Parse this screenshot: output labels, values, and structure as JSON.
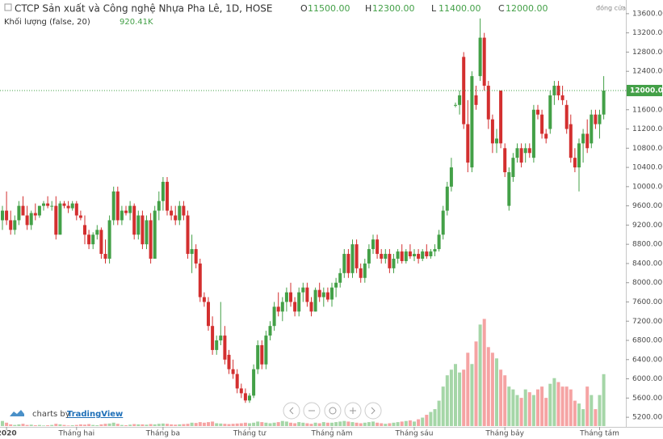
{
  "chart_data": {
    "type": "candlestick",
    "title": "CTCP Sản xuất và Công nghệ Nhựa Pha Lê, 1D, HOSE",
    "ohlc_legend": [
      {
        "key": "O",
        "value": "11500.00"
      },
      {
        "key": "H",
        "value": "12300.00"
      },
      {
        "key": "L",
        "value": "11400.00"
      },
      {
        "key": "C",
        "value": "12000.00"
      }
    ],
    "close_label": "đóng cửa",
    "volume_legend": {
      "name": "Khối lượng (false, 20)",
      "value": "920.41K"
    },
    "branding": {
      "prefix": "charts by",
      "name": "TradingView"
    },
    "up_color": "#43a047",
    "down_color": "#d32f2f",
    "volume_up_color": "#a5d6a7",
    "volume_down_color": "#f5a3a3",
    "ylim": [
      5000,
      13800
    ],
    "vlim": [
      0,
      2150000
    ],
    "yticks": [
      {
        "value": 5200,
        "label": "5200.00"
      },
      {
        "value": 5600,
        "label": "5600.00"
      },
      {
        "value": 6000,
        "label": "6000.00"
      },
      {
        "value": 6400,
        "label": "6400.00"
      },
      {
        "value": 6800,
        "label": "6800.00"
      },
      {
        "value": 7200,
        "label": "7200.00"
      },
      {
        "value": 7600,
        "label": "7600.00"
      },
      {
        "value": 8000,
        "label": "8000.00"
      },
      {
        "value": 8400,
        "label": "8400.00"
      },
      {
        "value": 8800,
        "label": "8800.00"
      },
      {
        "value": 9200,
        "label": "9200.00"
      },
      {
        "value": 9600,
        "label": "9600.00"
      },
      {
        "value": 10000,
        "label": "10000.00"
      },
      {
        "value": 10400,
        "label": "10400.00"
      },
      {
        "value": 10800,
        "label": "10800.00"
      },
      {
        "value": 11200,
        "label": "11200.00"
      },
      {
        "value": 11600,
        "label": "11600.00"
      },
      {
        "value": 12000,
        "label": "12000.00"
      },
      {
        "value": 12400,
        "label": "12400.00"
      },
      {
        "value": 12800,
        "label": "12800.00"
      },
      {
        "value": 13200,
        "label": "13200.00"
      },
      {
        "value": 13600,
        "label": "13600.00"
      }
    ],
    "last_price": {
      "value": 12000,
      "label": "12000.00"
    },
    "xticks": [
      {
        "value": 1,
        "label": "2020"
      },
      {
        "value": 18,
        "label": "Tháng hai"
      },
      {
        "value": 39,
        "label": "Tháng ba"
      },
      {
        "value": 60,
        "label": "Tháng tư"
      },
      {
        "value": 80,
        "label": "Tháng năm"
      },
      {
        "value": 100,
        "label": "Tháng sáu"
      },
      {
        "value": 122,
        "label": "Tháng bảy"
      },
      {
        "value": 145,
        "label": "Tháng tám"
      }
    ],
    "candles": [
      [
        9300,
        9600,
        9100,
        9500
      ],
      [
        9500,
        9900,
        9200,
        9300
      ],
      [
        9300,
        9500,
        9000,
        9100
      ],
      [
        9100,
        9400,
        9000,
        9300
      ],
      [
        9300,
        9700,
        9200,
        9600
      ],
      [
        9600,
        9800,
        9400,
        9400
      ],
      [
        9400,
        9600,
        9100,
        9200
      ],
      [
        9200,
        9500,
        9100,
        9450
      ],
      [
        9450,
        9650,
        9300,
        9400
      ],
      [
        9400,
        9600,
        9350,
        9600
      ],
      [
        9600,
        9700,
        9500,
        9650
      ],
      [
        9650,
        9800,
        9550,
        9600
      ],
      [
        9600,
        9700,
        9500,
        9600
      ],
      [
        9600,
        9800,
        8900,
        9000
      ],
      [
        9000,
        9700,
        9000,
        9650
      ],
      [
        9650,
        9700,
        9550,
        9600
      ],
      [
        9600,
        9700,
        9450,
        9550
      ],
      [
        9550,
        9700,
        9500,
        9650
      ],
      [
        9650,
        9700,
        9300,
        9400
      ],
      [
        9400,
        9500,
        9300,
        9350
      ],
      [
        9200,
        9400,
        8800,
        9000
      ],
      [
        9000,
        9100,
        8700,
        8800
      ],
      [
        8800,
        9050,
        8700,
        9000
      ],
      [
        9000,
        9200,
        8900,
        9100
      ],
      [
        9100,
        9150,
        8500,
        8600
      ],
      [
        8600,
        8900,
        8400,
        8500
      ],
      [
        8500,
        9400,
        8400,
        9300
      ],
      [
        9300,
        10000,
        9200,
        9900
      ],
      [
        9900,
        10000,
        9200,
        9300
      ],
      [
        9300,
        9600,
        9200,
        9500
      ],
      [
        9500,
        9600,
        9400,
        9450
      ],
      [
        9450,
        9700,
        9300,
        9600
      ],
      [
        9600,
        9650,
        8900,
        9000
      ],
      [
        9000,
        9500,
        8900,
        9400
      ],
      [
        9400,
        9500,
        8700,
        8800
      ],
      [
        8800,
        9400,
        8700,
        9300
      ],
      [
        9300,
        9450,
        8400,
        8500
      ],
      [
        8500,
        9600,
        8500,
        9500
      ],
      [
        9500,
        9900,
        9300,
        9700
      ],
      [
        9700,
        10200,
        9500,
        10100
      ],
      [
        10100,
        10200,
        9400,
        9500
      ],
      [
        9500,
        9600,
        9300,
        9400
      ],
      [
        9400,
        9600,
        9200,
        9300
      ],
      [
        9300,
        9700,
        9200,
        9600
      ],
      [
        9600,
        9700,
        9300,
        9400
      ],
      [
        9400,
        9500,
        8500,
        8600
      ],
      [
        8600,
        9000,
        8200,
        8700
      ],
      [
        8700,
        8800,
        8300,
        8400
      ],
      [
        8400,
        8500,
        7600,
        7700
      ],
      [
        7700,
        7800,
        7500,
        7600
      ],
      [
        7600,
        7700,
        7000,
        7100
      ],
      [
        7100,
        7300,
        6500,
        6600
      ],
      [
        6600,
        6900,
        6500,
        6800
      ],
      [
        6800,
        7600,
        6700,
        6900
      ],
      [
        6900,
        7100,
        6300,
        6400
      ],
      [
        6500,
        6600,
        6100,
        6200
      ],
      [
        6200,
        6400,
        6000,
        6100
      ],
      [
        6100,
        6200,
        5700,
        5800
      ],
      [
        5800,
        5900,
        5600,
        5700
      ],
      [
        5700,
        5800,
        5500,
        5550
      ],
      [
        5550,
        5700,
        5500,
        5650
      ],
      [
        5650,
        6300,
        5600,
        6200
      ],
      [
        6200,
        6800,
        6100,
        6700
      ],
      [
        6700,
        6800,
        6200,
        6300
      ],
      [
        6300,
        7000,
        6200,
        6900
      ],
      [
        6900,
        7200,
        6800,
        7100
      ],
      [
        7100,
        7600,
        7000,
        7500
      ],
      [
        7500,
        7800,
        7300,
        7400
      ],
      [
        7400,
        7700,
        7200,
        7600
      ],
      [
        7600,
        7900,
        7400,
        7800
      ],
      [
        7800,
        8000,
        7500,
        7600
      ],
      [
        7600,
        7700,
        7300,
        7400
      ],
      [
        7400,
        7900,
        7300,
        7800
      ],
      [
        7800,
        8000,
        7600,
        7900
      ],
      [
        7900,
        8000,
        7500,
        7600
      ],
      [
        7600,
        7700,
        7300,
        7400
      ],
      [
        7400,
        7900,
        7400,
        7850
      ],
      [
        7850,
        8000,
        7600,
        7700
      ],
      [
        7700,
        7900,
        7500,
        7800
      ],
      [
        7800,
        7900,
        7600,
        7650
      ],
      [
        7650,
        8000,
        7500,
        7900
      ],
      [
        7900,
        8100,
        7700,
        8000
      ],
      [
        8000,
        8300,
        7900,
        8200
      ],
      [
        8200,
        8700,
        8100,
        8600
      ],
      [
        8600,
        8700,
        8100,
        8200
      ],
      [
        8200,
        8900,
        8100,
        8800
      ],
      [
        8800,
        8900,
        8200,
        8300
      ],
      [
        8300,
        8400,
        8000,
        8100
      ],
      [
        8100,
        8500,
        8000,
        8400
      ],
      [
        8400,
        8800,
        8300,
        8700
      ],
      [
        8700,
        9000,
        8600,
        8900
      ],
      [
        8900,
        9000,
        8500,
        8600
      ],
      [
        8600,
        8700,
        8400,
        8500
      ],
      [
        8500,
        8700,
        8400,
        8600
      ],
      [
        8600,
        8700,
        8200,
        8300
      ],
      [
        8300,
        8600,
        8200,
        8500
      ],
      [
        8500,
        8700,
        8400,
        8650
      ],
      [
        8650,
        8800,
        8400,
        8450
      ],
      [
        8450,
        8700,
        8400,
        8650
      ],
      [
        8650,
        8800,
        8500,
        8550
      ],
      [
        8550,
        8700,
        8450,
        8600
      ],
      [
        8600,
        8700,
        8400,
        8500
      ],
      [
        8500,
        8700,
        8450,
        8650
      ],
      [
        8650,
        8800,
        8500,
        8550
      ],
      [
        8550,
        8700,
        8500,
        8650
      ],
      [
        8650,
        8800,
        8550,
        8700
      ],
      [
        8700,
        9100,
        8650,
        9000
      ],
      [
        9000,
        9600,
        8900,
        9500
      ],
      [
        9500,
        10100,
        9400,
        10000
      ],
      [
        10000,
        10600,
        9900,
        10400
      ],
      [
        11700,
        11750,
        11650,
        11700
      ],
      [
        11700,
        12000,
        11500,
        11900
      ],
      [
        12700,
        12800,
        11200,
        11300
      ],
      [
        11300,
        11800,
        10300,
        10500
      ],
      [
        10400,
        12400,
        10300,
        12300
      ],
      [
        11900,
        12100,
        11600,
        11700
      ],
      [
        12300,
        13500,
        12200,
        13100
      ],
      [
        13100,
        13200,
        12000,
        12100
      ],
      [
        12100,
        12200,
        11200,
        11400
      ],
      [
        11400,
        11500,
        10700,
        10900
      ],
      [
        10900,
        11200,
        10700,
        11000
      ],
      [
        12000,
        12000,
        10800,
        10900
      ],
      [
        10800,
        10900,
        10200,
        10300
      ],
      [
        9600,
        10400,
        9500,
        10300
      ],
      [
        10200,
        10700,
        10100,
        10600
      ],
      [
        10600,
        10900,
        10500,
        10800
      ],
      [
        10800,
        10900,
        10400,
        10500
      ],
      [
        10700,
        10900,
        10500,
        10800
      ],
      [
        10800,
        10900,
        10600,
        10700
      ],
      [
        10600,
        11700,
        10500,
        11600
      ],
      [
        11600,
        11700,
        11400,
        11500
      ],
      [
        11500,
        11600,
        11000,
        11100
      ],
      [
        11100,
        11200,
        10900,
        11000
      ],
      [
        11200,
        12000,
        11100,
        11900
      ],
      [
        11900,
        12200,
        11700,
        12100
      ],
      [
        12100,
        12200,
        11800,
        11900
      ],
      [
        11900,
        12100,
        11700,
        11800
      ],
      [
        11700,
        11800,
        11100,
        11200
      ],
      [
        11300,
        11500,
        10500,
        10600
      ],
      [
        10600,
        10800,
        10300,
        10400
      ],
      [
        10400,
        11000,
        9900,
        10900
      ],
      [
        10900,
        11200,
        10500,
        11100
      ],
      [
        11100,
        11400,
        10700,
        10800
      ],
      [
        10900,
        11600,
        10800,
        11500
      ],
      [
        11500,
        11600,
        11200,
        11300
      ],
      [
        11300,
        11600,
        11000,
        11500
      ],
      [
        11500,
        12300,
        11400,
        12000
      ]
    ],
    "volumes": [
      90000,
      60000,
      30000,
      20000,
      30000,
      40000,
      20000,
      25000,
      15000,
      20000,
      10000,
      15000,
      20000,
      40000,
      30000,
      20000,
      10000,
      15000,
      20000,
      30000,
      25000,
      35000,
      20000,
      15000,
      30000,
      40000,
      45000,
      60000,
      40000,
      20000,
      15000,
      25000,
      35000,
      30000,
      30000,
      25000,
      35000,
      30000,
      40000,
      45000,
      40000,
      30000,
      25000,
      30000,
      35000,
      40000,
      60000,
      55000,
      70000,
      60000,
      70000,
      80000,
      50000,
      45000,
      40000,
      35000,
      40000,
      45000,
      50000,
      60000,
      50000,
      60000,
      80000,
      70000,
      60000,
      50000,
      60000,
      70000,
      90000,
      80000,
      60000,
      50000,
      70000,
      60000,
      50000,
      40000,
      60000,
      50000,
      70000,
      60000,
      60000,
      70000,
      80000,
      90000,
      80000,
      70000,
      60000,
      50000,
      60000,
      70000,
      80000,
      60000,
      50000,
      40000,
      50000,
      60000,
      70000,
      80000,
      90000,
      100000,
      80000,
      120000,
      150000,
      200000,
      250000,
      300000,
      450000,
      700000,
      900000,
      1000000,
      1100000,
      950000,
      1000000,
      1300000,
      1100000,
      1500000,
      1800000,
      1900000,
      1400000,
      1300000,
      1200000,
      1000000,
      900000,
      700000,
      650000,
      550000,
      500000,
      650000,
      600000,
      550000,
      650000,
      700000,
      500000,
      750000,
      850000,
      780000,
      700000,
      700000,
      650000,
      450000,
      400000,
      300000,
      700000,
      550000,
      300000,
      550000,
      920410
    ]
  }
}
